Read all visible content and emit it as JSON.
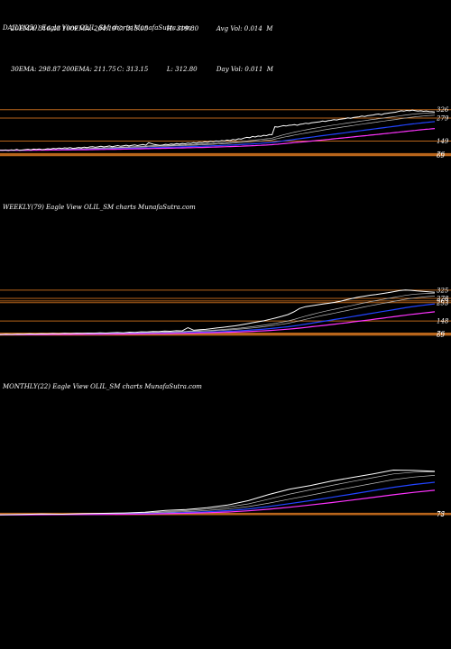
{
  "header": {
    "row1": [
      "20EMA: 316.43",
      "100EMA: 264.19",
      "C: 315.05",
      "H: 319.80",
      "Avg Vol: 0.014  M"
    ],
    "row2": [
      "30EMA: 298.87",
      "200EMA: 211.75",
      "C: 313.15",
      "L: 312.80",
      "Day Vol: 0.011  M"
    ]
  },
  "panels": {
    "daily_label": "DAILY(250) Eagle   View  OLIL_SM charts MunafaSutra.com",
    "weekly_label": "WEEKLY(79) Eagle   View  OLIL_SM charts MunafaSutra.com",
    "monthly_label": "MONTHLY(22) Eagle   View  OLIL_SM charts MunafaSutra.com"
  },
  "colors": {
    "background": "#000000",
    "price": "#ffffff",
    "ema_fast": "#2244ff",
    "ema_slow": "#ff33ff",
    "ema_misc": "#bbbbbb",
    "level": "#b8651b"
  },
  "chart_data": [
    {
      "type": "line",
      "name": "daily",
      "levels": [
        {
          "value": 326,
          "label": "326"
        },
        {
          "value": 279,
          "label": "279"
        },
        {
          "value": 149,
          "label": "149"
        },
        {
          "value": 76,
          "label": "76"
        },
        {
          "value": 69,
          "label": "69"
        }
      ],
      "ylim": [
        40,
        345
      ],
      "price": [
        98,
        97,
        99,
        96,
        100,
        98,
        102,
        97,
        99,
        101,
        103,
        100,
        104,
        102,
        105,
        101,
        103,
        106,
        104,
        108,
        106,
        110,
        107,
        111,
        109,
        112,
        108,
        110,
        113,
        111,
        115,
        112,
        116,
        118,
        114,
        117,
        120,
        116,
        119,
        122,
        118,
        121,
        124,
        120,
        123,
        126,
        122,
        125,
        128,
        124,
        127,
        130,
        126,
        140,
        135,
        130,
        128,
        125,
        127,
        131,
        129,
        133,
        131,
        135,
        132,
        136,
        134,
        138,
        136,
        140,
        138,
        142,
        140,
        145,
        142,
        148,
        145,
        150,
        148,
        152,
        150,
        155,
        152,
        158,
        156,
        162,
        160,
        166,
        170,
        168,
        175,
        172,
        178,
        176,
        182,
        180,
        186,
        185,
        230,
        228,
        232,
        236,
        234,
        238,
        240,
        242,
        238,
        244,
        246,
        250,
        248,
        252,
        254,
        256,
        258,
        262,
        260,
        264,
        266,
        270,
        268,
        272,
        274,
        276,
        280,
        278,
        282,
        284,
        286,
        290,
        288,
        292,
        294,
        296,
        300,
        302,
        298,
        304,
        306,
        308,
        310,
        312,
        316,
        320,
        318,
        322,
        320,
        324,
        321,
        318,
        320,
        317,
        319,
        316,
        315,
        313
      ]
    },
    {
      "type": "line",
      "name": "weekly",
      "levels": [
        {
          "value": 325,
          "label": "325"
        },
        {
          "value": 278,
          "label": "278"
        },
        {
          "value": 263,
          "label": "263"
        },
        {
          "value": 253,
          "label": "253"
        },
        {
          "value": 148,
          "label": "148"
        },
        {
          "value": 76,
          "label": "76"
        },
        {
          "value": 69,
          "label": "69"
        }
      ],
      "ylim": [
        40,
        345
      ],
      "price": [
        70,
        72,
        71,
        73,
        72,
        74,
        73,
        75,
        74,
        76,
        75,
        77,
        76,
        78,
        77,
        79,
        78,
        80,
        79,
        81,
        82,
        80,
        84,
        83,
        86,
        85,
        88,
        87,
        90,
        89,
        92,
        91,
        110,
        95,
        98,
        100,
        104,
        108,
        112,
        116,
        120,
        126,
        132,
        138,
        144,
        150,
        158,
        166,
        175,
        185,
        200,
        220,
        230,
        235,
        240,
        245,
        250,
        255,
        262,
        270,
        278,
        285,
        290,
        296,
        300,
        305,
        310,
        316,
        322,
        326,
        324,
        320,
        318,
        315,
        313
      ]
    },
    {
      "type": "line",
      "name": "monthly",
      "levels": [
        {
          "value": 76,
          "label": "76"
        },
        {
          "value": 73,
          "label": "73"
        }
      ],
      "ylim": [
        40,
        345
      ],
      "price": [
        70,
        72,
        74,
        73,
        76,
        78,
        80,
        84,
        95,
        100,
        110,
        125,
        150,
        185,
        215,
        235,
        260,
        280,
        300,
        322,
        320,
        315
      ]
    }
  ]
}
